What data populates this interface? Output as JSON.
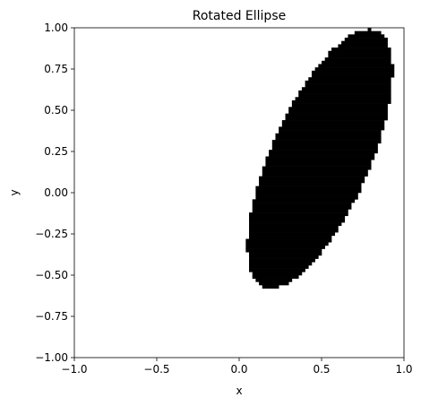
{
  "chart_data": {
    "type": "heatmap",
    "title": "Rotated Ellipse",
    "xlabel": "x",
    "ylabel": "y",
    "xlim": [
      -1.0,
      1.0
    ],
    "ylim": [
      -1.0,
      1.0
    ],
    "xticks": [
      -1.0,
      -0.5,
      0.0,
      0.5,
      1.0
    ],
    "yticks": [
      -1.0,
      -0.75,
      -0.5,
      -0.25,
      0.0,
      0.25,
      0.5,
      0.75,
      1.0
    ],
    "xtick_labels": [
      "−1.0",
      "−0.5",
      "0.0",
      "0.5",
      "1.0"
    ],
    "ytick_labels": [
      "−1.00",
      "−0.75",
      "−0.50",
      "−0.25",
      "0.00",
      "0.25",
      "0.50",
      "0.75",
      "1.00"
    ],
    "grid": false,
    "fill_color": "#000000",
    "background_color": "#ffffff",
    "grid_resolution": 100,
    "ellipse": {
      "center": [
        0.49,
        0.205
      ],
      "semi_major": 0.85,
      "semi_minor": 0.3,
      "angle_deg": 66
    }
  }
}
